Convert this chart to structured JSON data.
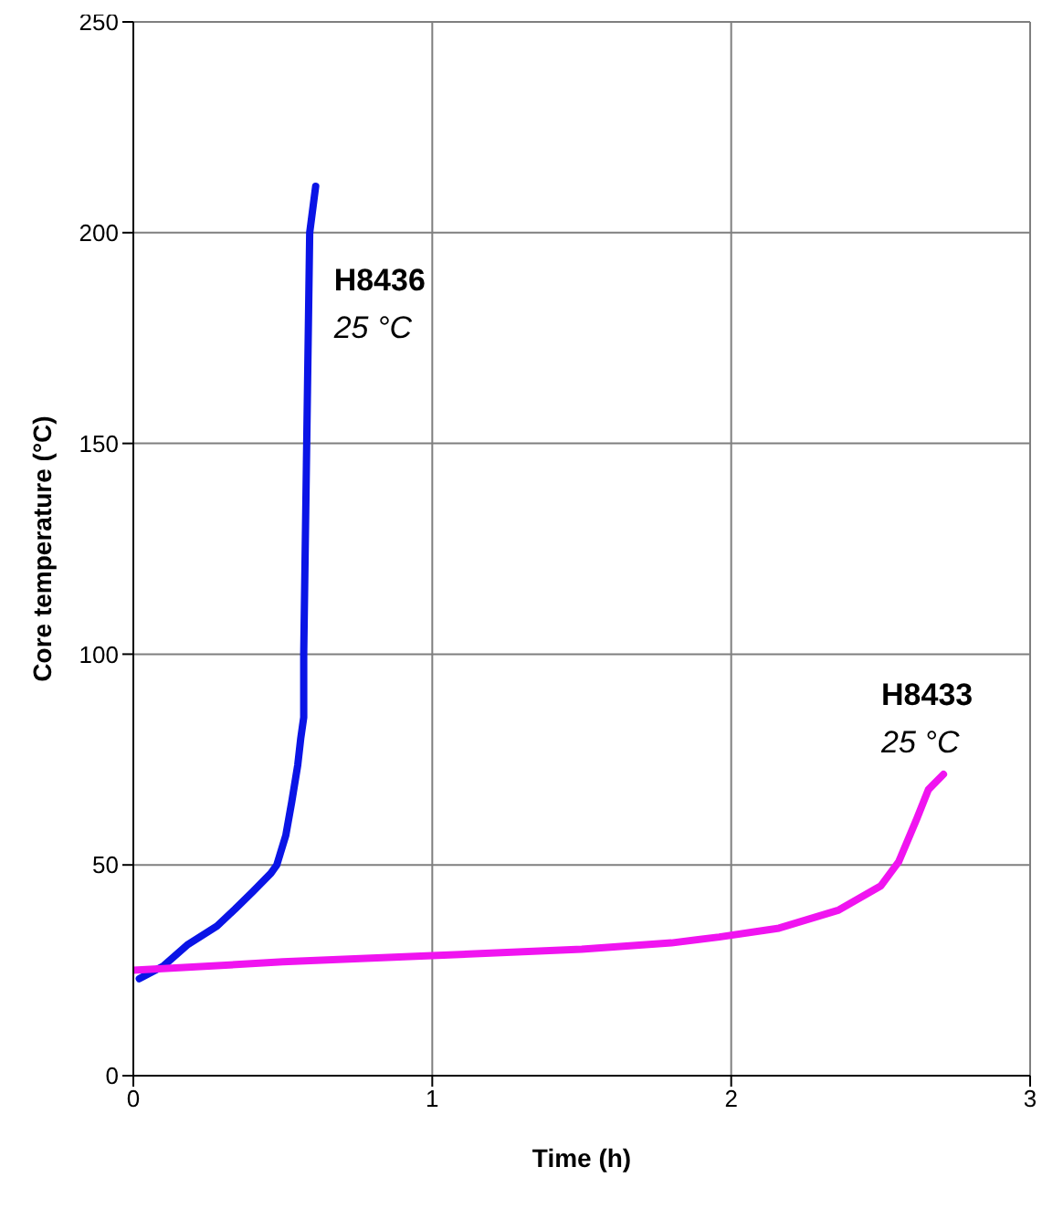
{
  "chart_data": {
    "type": "line",
    "xlabel": "Time (h)",
    "ylabel": "Core temperature (°C)",
    "xlim": [
      0,
      3
    ],
    "xticks": [
      0,
      1,
      2,
      3
    ],
    "ylim": [
      0,
      250
    ],
    "yticks": [
      0,
      50,
      100,
      150,
      200,
      250
    ],
    "grid": true,
    "legend": false,
    "marker": "none",
    "line_style": "solid",
    "series": [
      {
        "name": "H8436",
        "color": "#0a14e6",
        "x": [
          0.02,
          0.1,
          0.18,
          0.28,
          0.34,
          0.4,
          0.46,
          0.48,
          0.51,
          0.53,
          0.55,
          0.56,
          0.57,
          0.57,
          0.58,
          0.59,
          0.61
        ],
        "values": [
          23,
          26,
          31,
          35.5,
          39.5,
          43.7,
          48,
          50,
          57,
          65,
          73.7,
          80,
          85,
          100,
          150,
          200,
          211
        ]
      },
      {
        "name": "H8433",
        "color": "#f014f0",
        "x": [
          0,
          0.5,
          1,
          1.5,
          1.8,
          1.96,
          2.16,
          2.36,
          2.5,
          2.56,
          2.62,
          2.66,
          2.71
        ],
        "values": [
          25,
          27,
          28.5,
          30,
          31.5,
          32.9,
          35,
          39.3,
          45,
          50.7,
          60.8,
          67.9,
          71.5
        ]
      }
    ],
    "annotations": [
      "25 °C",
      "25 °C"
    ]
  }
}
